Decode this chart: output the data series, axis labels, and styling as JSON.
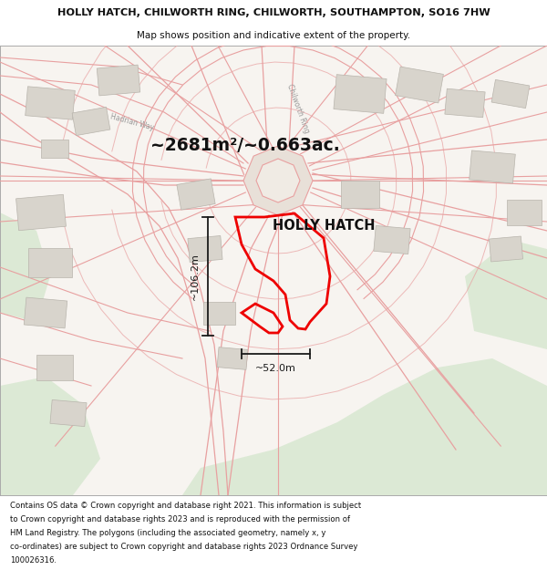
{
  "title_line1": "HOLLY HATCH, CHILWORTH RING, CHILWORTH, SOUTHAMPTON, SO16 7HW",
  "title_line2": "Map shows position and indicative extent of the property.",
  "footer_lines": [
    "Contains OS data © Crown copyright and database right 2021. This information is subject",
    "to Crown copyright and database rights 2023 and is reproduced with the permission of",
    "HM Land Registry. The polygons (including the associated geometry, namely x, y",
    "co-ordinates) are subject to Crown copyright and database rights 2023 Ordnance Survey",
    "100026316."
  ],
  "area_label": "~2681m²/~0.663ac.",
  "property_name": "HOLLY HATCH",
  "dim_height": "~106.2m",
  "dim_width": "~52.0m",
  "bg_map_color": "#f7f4f0",
  "bg_green_color": "#dce9d5",
  "road_color": "#e8a0a0",
  "road_edge_color": "#d08080",
  "roundabout_fill": "#e8e0d8",
  "roundabout_center_fill": "#f0ebe4",
  "building_color": "#d8d4cc",
  "building_edge_color": "#b8b4ac",
  "property_outline_color": "#ee0000",
  "title_bg_color": "#ffffff",
  "footer_bg_color": "#ffffff",
  "map_border_color": "#aaaaaa",
  "label_road_color": "#999999",
  "dim_line_color": "#1a1a1a"
}
